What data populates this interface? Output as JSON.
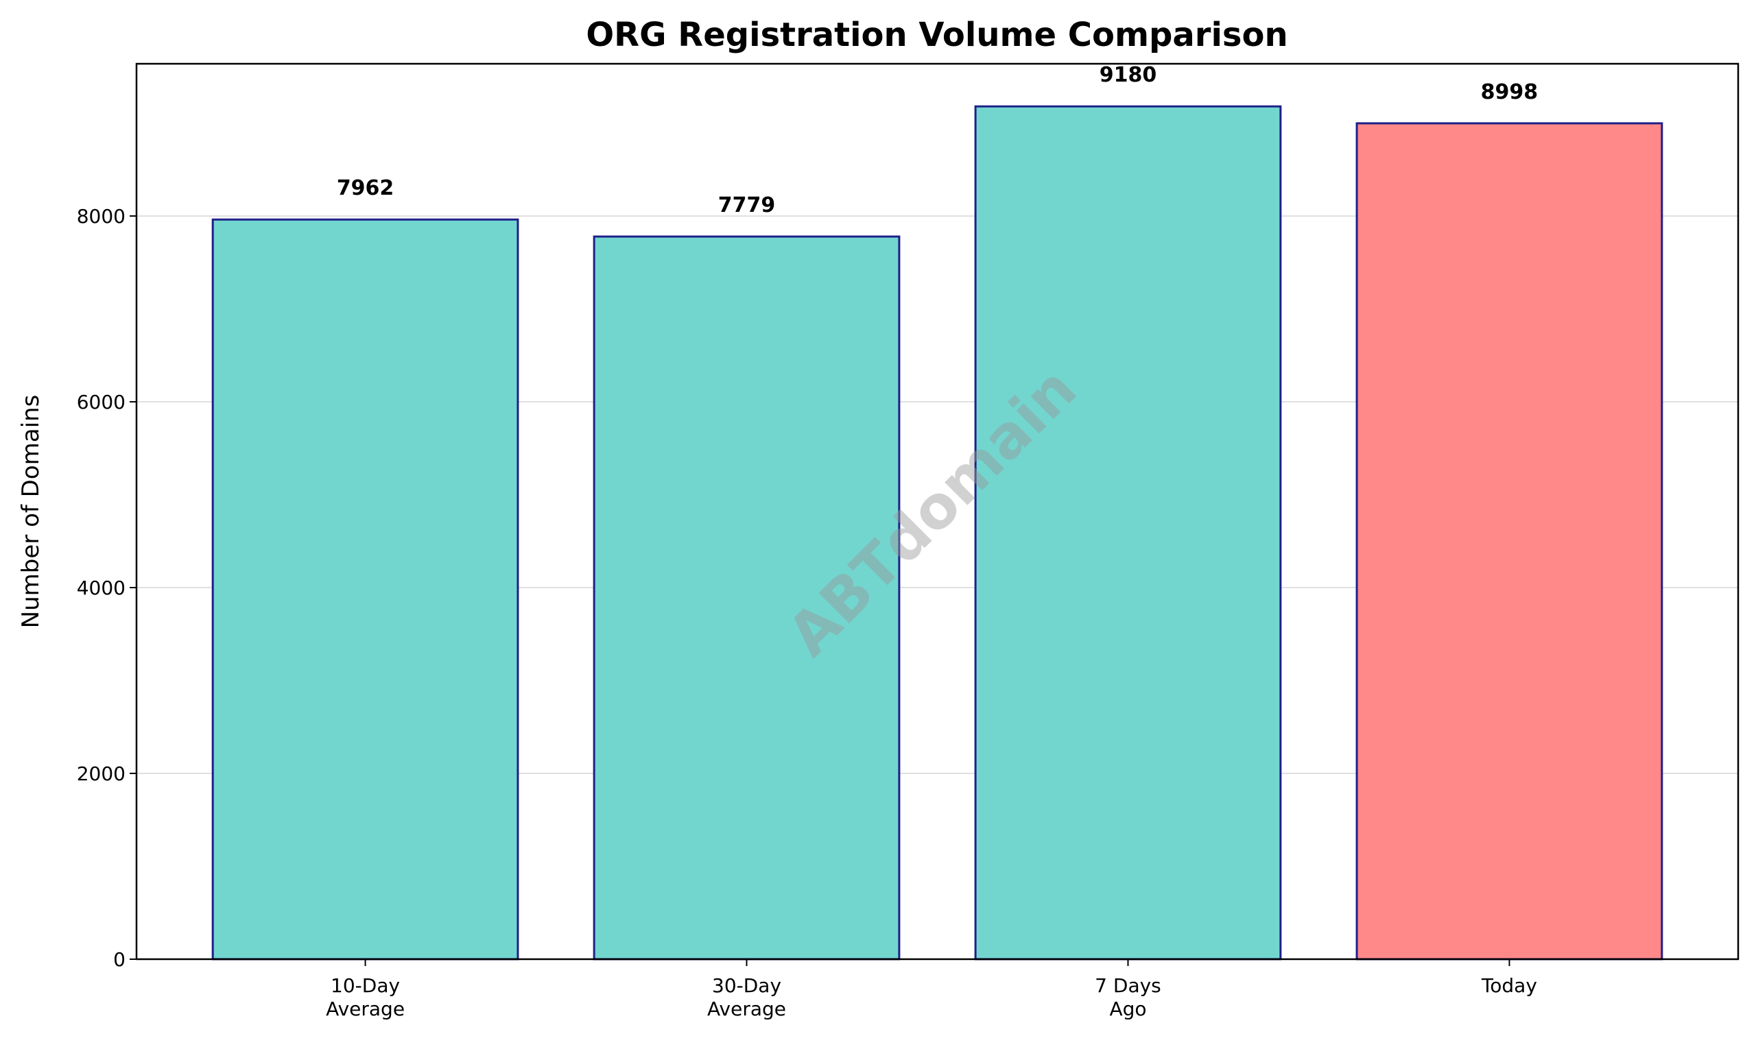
{
  "chart_data": {
    "type": "bar",
    "title": "ORG Registration Volume Comparison",
    "xlabel": "",
    "ylabel": "Number of Domains",
    "categories": [
      [
        "10-Day",
        "Average"
      ],
      [
        "30-Day",
        "Average"
      ],
      [
        "7 Days",
        "Ago"
      ],
      [
        "Today"
      ]
    ],
    "values": [
      7962,
      7779,
      9180,
      8998
    ],
    "data_labels": [
      "7962",
      "7779",
      "9180",
      "8998"
    ],
    "ylim": [
      0,
      9639
    ],
    "yticks": [
      0,
      2000,
      4000,
      6000,
      8000
    ],
    "ytick_labels": [
      "0",
      "2000",
      "4000",
      "6000",
      "8000"
    ],
    "grid": "y",
    "colors": [
      "#72d6cf",
      "#72d6cf",
      "#72d6cf",
      "#ff8888"
    ],
    "edge_color": "#1f1f8a",
    "watermark": "ABTdomain"
  }
}
